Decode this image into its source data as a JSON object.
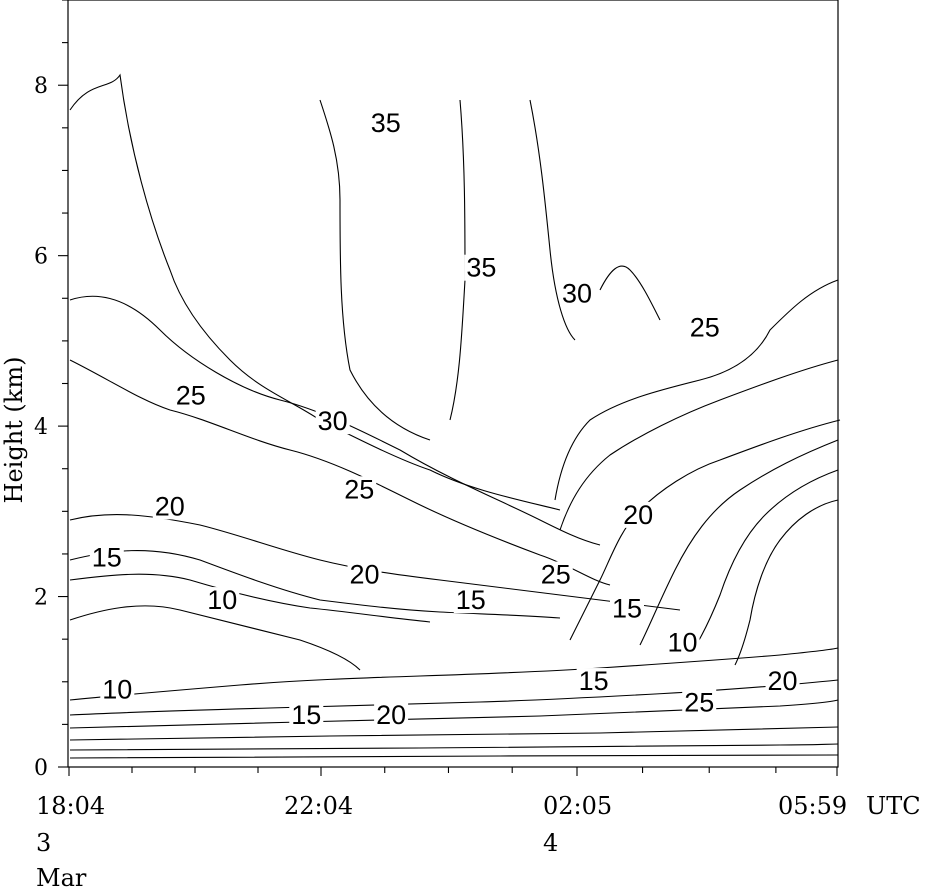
{
  "chart_data": {
    "type": "contour",
    "ylabel": "Height (km)",
    "xlabel": "",
    "ylim": [
      0,
      9
    ],
    "yticks": [
      0,
      2,
      4,
      6,
      8
    ],
    "x_ticks": [
      {
        "time": "18:04",
        "date_line1": "3",
        "date_line2": "Mar"
      },
      {
        "time": "22:04",
        "date_line1": "",
        "date_line2": ""
      },
      {
        "time": "02:05",
        "date_line1": "4",
        "date_line2": ""
      },
      {
        "time": "05:59",
        "date_line1": "",
        "date_line2": ""
      }
    ],
    "time_unit": "UTC",
    "contour_levels": [
      10,
      15,
      20,
      25,
      30,
      35
    ],
    "contour_labels": [
      {
        "text": "35",
        "time": "23:05",
        "height": 7.5
      },
      {
        "text": "35",
        "time": "00:35",
        "height": 5.8
      },
      {
        "text": "30",
        "time": "02:05",
        "height": 5.5
      },
      {
        "text": "25",
        "time": "04:00",
        "height": 5.1
      },
      {
        "text": "25",
        "time": "20:00",
        "height": 4.3
      },
      {
        "text": "30",
        "time": "22:15",
        "height": 4.0
      },
      {
        "text": "25",
        "time": "22:40",
        "height": 3.2
      },
      {
        "text": "20",
        "time": "19:40",
        "height": 3.0
      },
      {
        "text": "20",
        "time": "03:00",
        "height": 2.9
      },
      {
        "text": "15",
        "time": "18:40",
        "height": 2.4
      },
      {
        "text": "20",
        "time": "22:45",
        "height": 2.2
      },
      {
        "text": "25",
        "time": "01:45",
        "height": 2.2
      },
      {
        "text": "10",
        "time": "20:30",
        "height": 1.9
      },
      {
        "text": "15",
        "time": "00:25",
        "height": 1.9
      },
      {
        "text": "15",
        "time": "02:50",
        "height": 1.8
      },
      {
        "text": "10",
        "time": "03:40",
        "height": 1.4
      },
      {
        "text": "15",
        "time": "02:20",
        "height": 0.95
      },
      {
        "text": "20",
        "time": "05:10",
        "height": 0.95
      },
      {
        "text": "10",
        "time": "18:50",
        "height": 0.85
      },
      {
        "text": "25",
        "time": "03:55",
        "height": 0.7
      },
      {
        "text": "15",
        "time": "21:50",
        "height": 0.55
      },
      {
        "text": "20",
        "time": "23:10",
        "height": 0.55
      }
    ]
  }
}
